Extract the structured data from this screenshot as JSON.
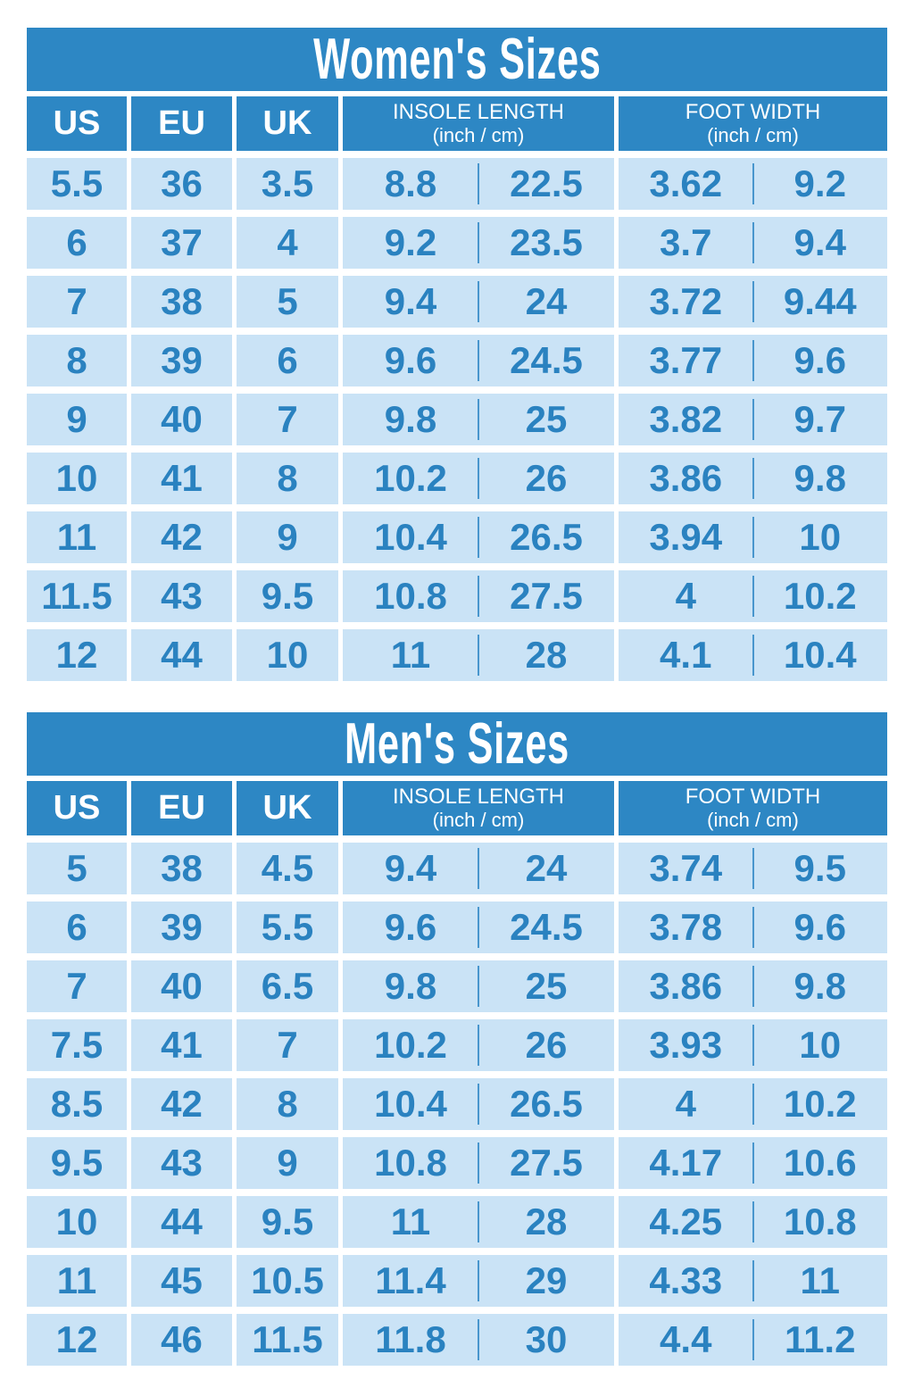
{
  "colors": {
    "primary_blue": "#2d87c4",
    "light_blue": "#cae3f6",
    "text_blue": "#2a82c0",
    "divider_blue": "#4896cd",
    "background": "#ffffff"
  },
  "columns": {
    "us": "US",
    "eu": "EU",
    "uk": "UK",
    "insole_title": "INSOLE LENGTH",
    "insole_sub": "(inch / cm)",
    "foot_title": "FOOT WIDTH",
    "foot_sub": "(inch / cm)"
  },
  "tables": [
    {
      "title": "Women's Sizes",
      "rows": [
        [
          "5.5",
          "36",
          "3.5",
          "8.8",
          "22.5",
          "3.62",
          "9.2"
        ],
        [
          "6",
          "37",
          "4",
          "9.2",
          "23.5",
          "3.7",
          "9.4"
        ],
        [
          "7",
          "38",
          "5",
          "9.4",
          "24",
          "3.72",
          "9.44"
        ],
        [
          "8",
          "39",
          "6",
          "9.6",
          "24.5",
          "3.77",
          "9.6"
        ],
        [
          "9",
          "40",
          "7",
          "9.8",
          "25",
          "3.82",
          "9.7"
        ],
        [
          "10",
          "41",
          "8",
          "10.2",
          "26",
          "3.86",
          "9.8"
        ],
        [
          "11",
          "42",
          "9",
          "10.4",
          "26.5",
          "3.94",
          "10"
        ],
        [
          "11.5",
          "43",
          "9.5",
          "10.8",
          "27.5",
          "4",
          "10.2"
        ],
        [
          "12",
          "44",
          "10",
          "11",
          "28",
          "4.1",
          "10.4"
        ]
      ]
    },
    {
      "title": "Men's Sizes",
      "rows": [
        [
          "5",
          "38",
          "4.5",
          "9.4",
          "24",
          "3.74",
          "9.5"
        ],
        [
          "6",
          "39",
          "5.5",
          "9.6",
          "24.5",
          "3.78",
          "9.6"
        ],
        [
          "7",
          "40",
          "6.5",
          "9.8",
          "25",
          "3.86",
          "9.8"
        ],
        [
          "7.5",
          "41",
          "7",
          "10.2",
          "26",
          "3.93",
          "10"
        ],
        [
          "8.5",
          "42",
          "8",
          "10.4",
          "26.5",
          "4",
          "10.2"
        ],
        [
          "9.5",
          "43",
          "9",
          "10.8",
          "27.5",
          "4.17",
          "10.6"
        ],
        [
          "10",
          "44",
          "9.5",
          "11",
          "28",
          "4.25",
          "10.8"
        ],
        [
          "11",
          "45",
          "10.5",
          "11.4",
          "29",
          "4.33",
          "11"
        ],
        [
          "12",
          "46",
          "11.5",
          "11.8",
          "30",
          "4.4",
          "11.2"
        ]
      ]
    }
  ]
}
